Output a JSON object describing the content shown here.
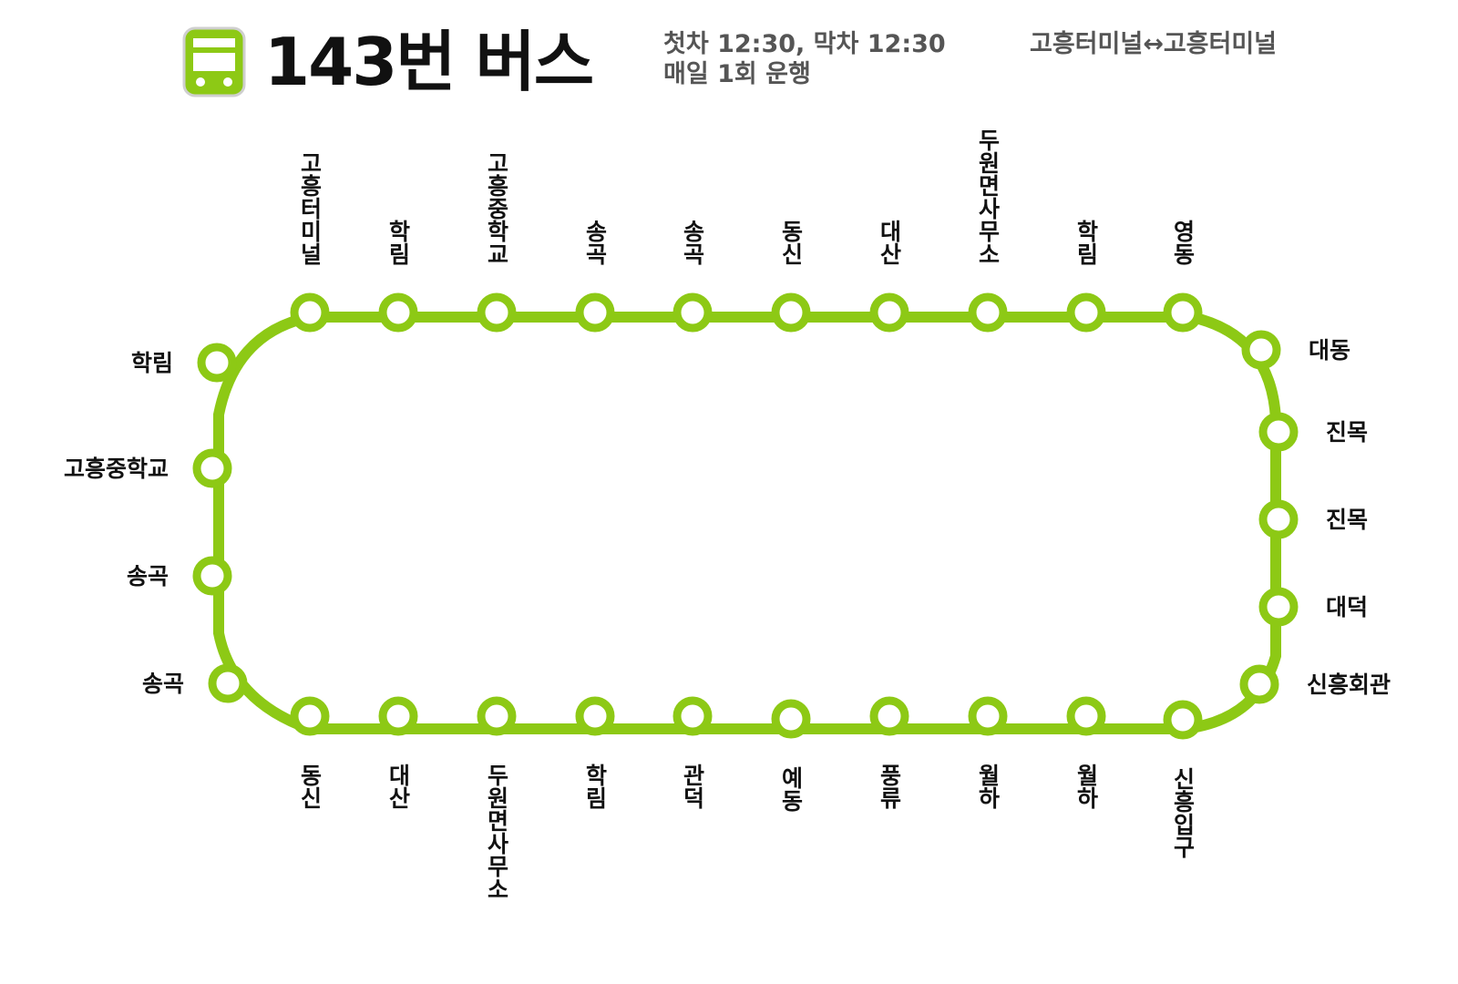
{
  "header": {
    "title": "143번 버스",
    "schedule_line1": "첫차 12:30, 막차 12:30",
    "schedule_line2": "매일 1회  운행",
    "terminus": "고흥터미널↔고흥터미널",
    "icon": "bus-icon"
  },
  "colors": {
    "route_line": "#8dc915",
    "station_fill": "#ffffff",
    "text": "#111111",
    "subtext": "#555555"
  },
  "route": {
    "top_stations": [
      "고흥터미널",
      "학림",
      "고흥중학교",
      "송곡",
      "송곡",
      "동신",
      "대산",
      "두원면사무소",
      "학림",
      "영동"
    ],
    "right_stations": [
      "대동",
      "진목",
      "진목",
      "대덕",
      "신흥회관"
    ],
    "bottom_stations": [
      "동신",
      "대산",
      "두원면사무소",
      "학림",
      "관덕",
      "예동",
      "풍류",
      "월하",
      "월하",
      "신흥입구"
    ],
    "left_stations": [
      "학림",
      "고흥중학교",
      "송곡",
      "송곡"
    ]
  }
}
